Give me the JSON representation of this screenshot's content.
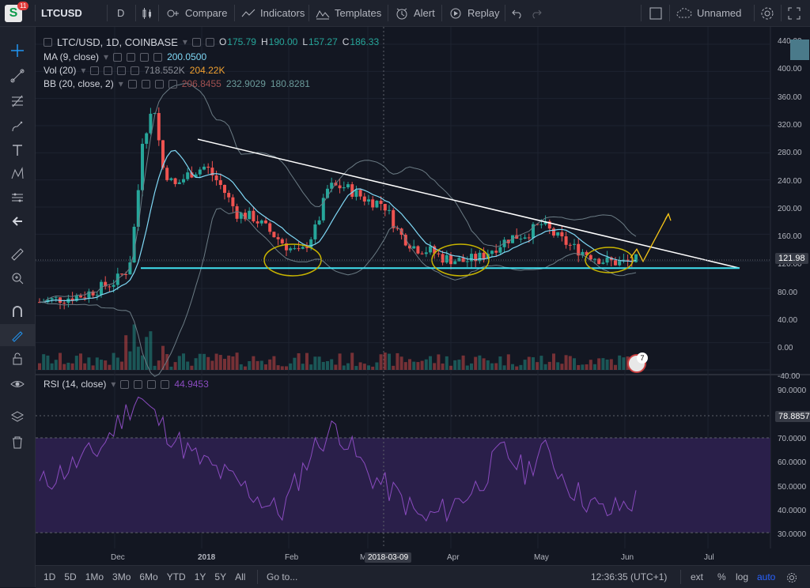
{
  "topbar": {
    "badge": "11",
    "symbol": "LTCUSD",
    "interval": "D",
    "compare": "Compare",
    "indicators": "Indicators",
    "templates": "Templates",
    "alert": "Alert",
    "replay": "Replay",
    "layout_name": "Unnamed"
  },
  "legend": {
    "main": {
      "title": "LTC/USD, 1D, COINBASE",
      "o_label": "O",
      "o": "175.79",
      "h_label": "H",
      "h": "190.00",
      "l_label": "L",
      "l": "157.27",
      "c_label": "C",
      "c": "186.33"
    },
    "ma": {
      "name": "MA (9, close)",
      "value": "200.0500"
    },
    "vol": {
      "name": "Vol (20)",
      "v1": "718.552K",
      "v2": "204.22K"
    },
    "bb": {
      "name": "BB (20, close, 2)",
      "v1": "206.8455",
      "v2": "232.9029",
      "v3": "180.8281"
    },
    "rsi": {
      "name": "RSI (14, close)",
      "value": "44.9453"
    }
  },
  "price_axis": [
    "440.00",
    "400.00",
    "360.00",
    "320.00",
    "280.00",
    "240.00",
    "200.00",
    "160.00",
    "120.00",
    "80.00",
    "40.00",
    "0.00",
    "-40.00"
  ],
  "price_tag": "121.98",
  "rsi_axis": [
    "90.0000",
    "80.0000",
    "70.0000",
    "60.0000",
    "50.0000",
    "40.0000",
    "30.0000"
  ],
  "rsi_tag": "78.8857",
  "time_axis": [
    "Dec",
    "2018",
    "Feb",
    "Ma",
    "Apr",
    "May",
    "Jun",
    "Jul"
  ],
  "crosshair_date": "2018-03-09",
  "event_count": "7",
  "bottombar": {
    "ranges": [
      "1D",
      "5D",
      "1Mo",
      "3Mo",
      "6Mo",
      "YTD",
      "1Y",
      "5Y",
      "All"
    ],
    "goto": "Go to...",
    "time": "12:36:35 (UTC+1)",
    "ext": "ext",
    "pct": "%",
    "log": "log",
    "auto": "auto"
  },
  "colors": {
    "bg": "#131722",
    "up": "#26a69a",
    "down": "#ef5350",
    "ma": "#7fd8f5",
    "bb": "#6b7b84",
    "rsi": "#8a4bbf",
    "rsi_band": "#2a1f4a",
    "support": "#40e0f0",
    "trend": "#ffffff",
    "circle": "#c8b400",
    "arrow": "#f5c518",
    "auto_active": "#2962ff"
  },
  "icons": [
    "chart-candles-icon",
    "compare-icon",
    "indicators-icon",
    "templates-icon",
    "alert-icon",
    "replay-icon",
    "undo-icon",
    "redo-icon",
    "fullscreen-icon",
    "cloud-icon",
    "settings-icon",
    "expand-icon",
    "crosshair-icon",
    "trendline-icon",
    "fib-icon",
    "brush-icon",
    "text-icon",
    "pattern-icon",
    "prediction-icon",
    "back-arrow-icon",
    "ruler-icon",
    "zoom-icon",
    "magnet-icon",
    "lock-pen-icon",
    "lock-icon",
    "eye-icon",
    "layers-icon",
    "trash-icon"
  ]
}
